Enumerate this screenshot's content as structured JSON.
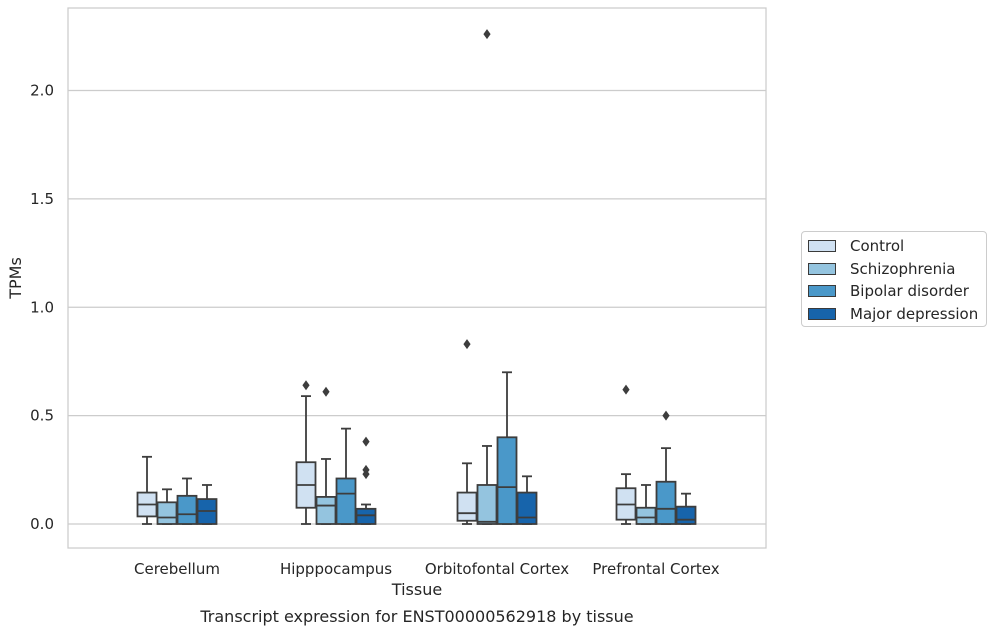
{
  "chart_data": {
    "type": "box",
    "title": "",
    "caption": "Transcript expression for ENST00000562918 by tissue",
    "xlabel": "Tissue",
    "ylabel": "TPMs",
    "ylim": [
      -0.11,
      2.38
    ],
    "yticks": [
      0.0,
      0.5,
      1.0,
      1.5,
      2.0
    ],
    "ytick_labels": [
      "0.0",
      "0.5",
      "1.0",
      "1.5",
      "2.0"
    ],
    "grid": true,
    "legend_position": "right",
    "categories": [
      "Cerebellum",
      "Hipppocampus",
      "Orbitofontal Cortex",
      "Prefrontal Cortex"
    ],
    "series": [
      {
        "name": "Control",
        "color": "#d0e1f2",
        "boxes": [
          {
            "whisker_low": 0.0,
            "q1": 0.035,
            "median": 0.09,
            "q3": 0.145,
            "whisker_high": 0.31,
            "outliers": []
          },
          {
            "whisker_low": 0.0,
            "q1": 0.075,
            "median": 0.18,
            "q3": 0.285,
            "whisker_high": 0.59,
            "outliers": [
              0.64
            ]
          },
          {
            "whisker_low": 0.0,
            "q1": 0.015,
            "median": 0.05,
            "q3": 0.145,
            "whisker_high": 0.28,
            "outliers": [
              0.83
            ]
          },
          {
            "whisker_low": 0.0,
            "q1": 0.02,
            "median": 0.09,
            "q3": 0.165,
            "whisker_high": 0.23,
            "outliers": [
              0.62
            ]
          }
        ]
      },
      {
        "name": "Schizophrenia",
        "color": "#94c4df",
        "boxes": [
          {
            "whisker_low": 0.0,
            "q1": 0.0,
            "median": 0.03,
            "q3": 0.1,
            "whisker_high": 0.16,
            "outliers": []
          },
          {
            "whisker_low": 0.0,
            "q1": 0.0,
            "median": 0.085,
            "q3": 0.125,
            "whisker_high": 0.3,
            "outliers": [
              0.61
            ]
          },
          {
            "whisker_low": 0.0,
            "q1": 0.0,
            "median": 0.01,
            "q3": 0.18,
            "whisker_high": 0.36,
            "outliers": [
              2.26
            ]
          },
          {
            "whisker_low": 0.0,
            "q1": 0.0,
            "median": 0.03,
            "q3": 0.075,
            "whisker_high": 0.18,
            "outliers": []
          }
        ]
      },
      {
        "name": "Bipolar disorder",
        "color": "#4a98c9",
        "boxes": [
          {
            "whisker_low": 0.0,
            "q1": 0.0,
            "median": 0.045,
            "q3": 0.13,
            "whisker_high": 0.21,
            "outliers": []
          },
          {
            "whisker_low": 0.0,
            "q1": 0.0,
            "median": 0.14,
            "q3": 0.21,
            "whisker_high": 0.44,
            "outliers": []
          },
          {
            "whisker_low": 0.0,
            "q1": 0.0,
            "median": 0.17,
            "q3": 0.4,
            "whisker_high": 0.7,
            "outliers": []
          },
          {
            "whisker_low": 0.0,
            "q1": 0.0,
            "median": 0.07,
            "q3": 0.195,
            "whisker_high": 0.35,
            "outliers": [
              0.5
            ]
          }
        ]
      },
      {
        "name": "Major depression",
        "color": "#1764ab",
        "boxes": [
          {
            "whisker_low": 0.0,
            "q1": 0.0,
            "median": 0.06,
            "q3": 0.115,
            "whisker_high": 0.18,
            "outliers": []
          },
          {
            "whisker_low": 0.0,
            "q1": 0.0,
            "median": 0.04,
            "q3": 0.07,
            "whisker_high": 0.09,
            "outliers": [
              0.23,
              0.25,
              0.38
            ]
          },
          {
            "whisker_low": 0.0,
            "q1": 0.0,
            "median": 0.03,
            "q3": 0.145,
            "whisker_high": 0.22,
            "outliers": []
          },
          {
            "whisker_low": 0.0,
            "q1": 0.0,
            "median": 0.02,
            "q3": 0.08,
            "whisker_high": 0.14,
            "outliers": []
          }
        ]
      }
    ]
  }
}
